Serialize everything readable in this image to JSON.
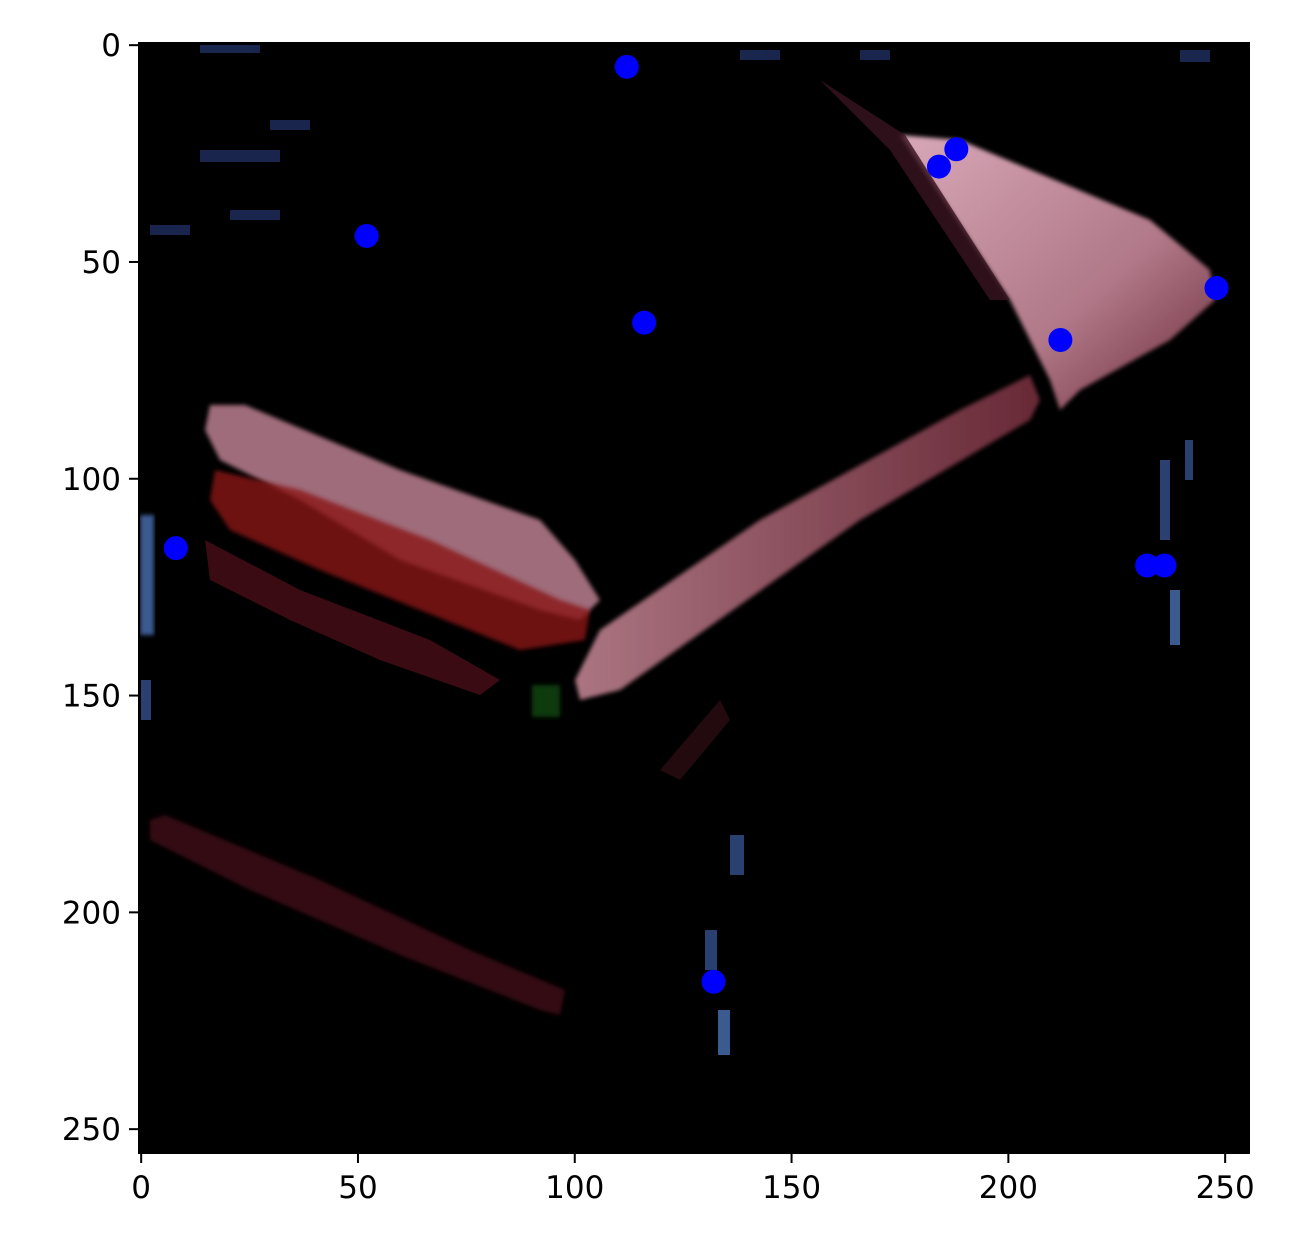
{
  "chart_data": {
    "type": "scatter",
    "title": "",
    "xlabel": "",
    "ylabel": "",
    "xlim": [
      -0.5,
      255.5
    ],
    "ylim": [
      255.5,
      -0.5
    ],
    "y_inverted": true,
    "grid": false,
    "legend": "none",
    "background": "image",
    "x_ticks": [
      "0",
      "50",
      "100",
      "150",
      "200",
      "250"
    ],
    "y_ticks": [
      "0",
      "50",
      "100",
      "150",
      "200",
      "250"
    ],
    "series": [
      {
        "marker_color": "#0000ff",
        "points": [
          {
            "x": 112,
            "y": 5
          },
          {
            "x": 188,
            "y": 24
          },
          {
            "x": 184,
            "y": 28
          },
          {
            "x": 52,
            "y": 44
          },
          {
            "x": 248,
            "y": 56
          },
          {
            "x": 116,
            "y": 64
          },
          {
            "x": 212,
            "y": 68
          },
          {
            "x": 8,
            "y": 116
          },
          {
            "x": 232,
            "y": 120
          },
          {
            "x": 236,
            "y": 120
          },
          {
            "x": 132,
            "y": 216
          }
        ]
      }
    ]
  }
}
